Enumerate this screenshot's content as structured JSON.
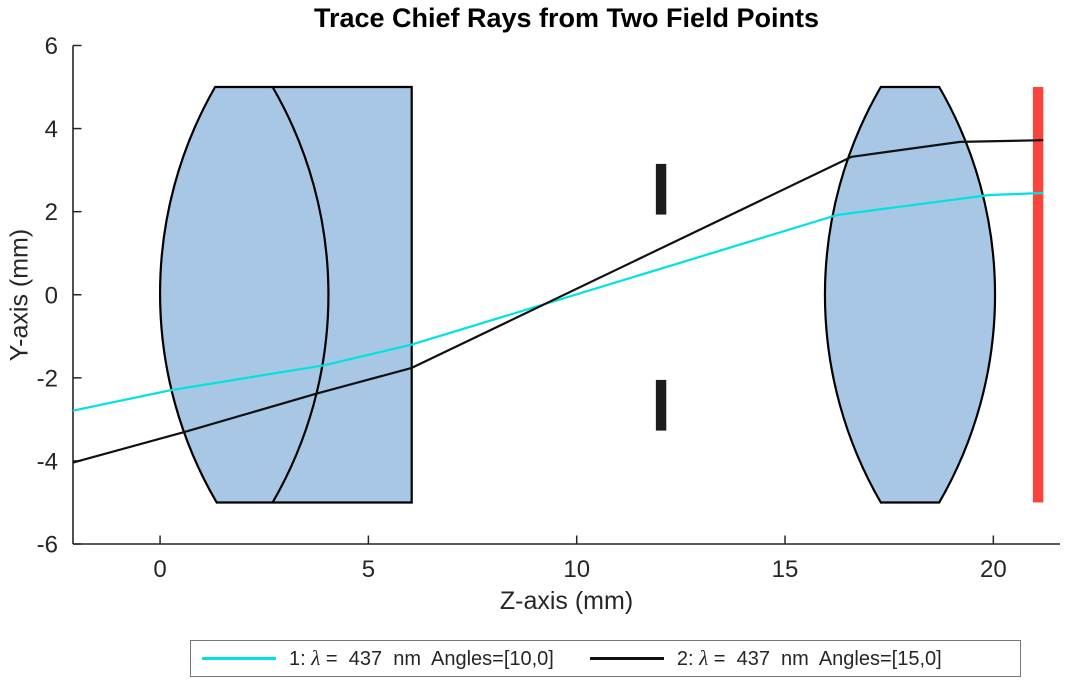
{
  "chart_data": {
    "type": "line",
    "title": "Trace Chief Rays from Two Field Points",
    "xlabel": "Z-axis (mm)",
    "ylabel": "Y-axis (mm)",
    "xlim": [
      -2.09,
      21.6
    ],
    "ylim": [
      -6,
      6
    ],
    "x_ticks": [
      0,
      5,
      10,
      15,
      20
    ],
    "y_ticks": [
      -6,
      -4,
      -2,
      0,
      2,
      4,
      6
    ],
    "grid": false,
    "legend_position": "south-outside",
    "axis_color": "#262626",
    "rays": [
      {
        "name": "1: λ = 437 nm Angles=[10,0]",
        "color": "#00e2e2",
        "points": [
          [
            -2.09,
            -2.79
          ],
          [
            0.24,
            -2.3
          ],
          [
            3.92,
            -1.7
          ],
          [
            6.04,
            -1.2
          ],
          [
            16.25,
            1.92
          ],
          [
            19.9,
            2.4
          ],
          [
            21.2,
            2.45
          ]
        ]
      },
      {
        "name": "2: λ = 437 nm Angles=[15,0]",
        "color": "#111111",
        "points": [
          [
            -2.09,
            -4.04
          ],
          [
            0.6,
            -3.3
          ],
          [
            3.76,
            -2.38
          ],
          [
            6.04,
            -1.76
          ],
          [
            16.6,
            3.32
          ],
          [
            19.2,
            3.68
          ],
          [
            21.2,
            3.72
          ]
        ]
      }
    ],
    "lenses": [
      {
        "name": "lens-group-1",
        "fill": "#a8c7e5",
        "stroke": "#000000",
        "outline": [
          [
            "M",
            1.32,
            5
          ],
          [
            "A",
            10,
            0,
            1.36,
            -5
          ],
          [
            "L",
            6.04,
            -5
          ],
          [
            "L",
            6.04,
            5
          ],
          [
            "Z"
          ]
        ],
        "inner_surfaces": [
          [
            [
              "M",
              2.7,
              5
            ],
            [
              "A",
              10,
              1,
              2.7,
              -5
            ]
          ]
        ]
      },
      {
        "name": "lens-2",
        "fill": "#a8c7e5",
        "stroke": "#000000",
        "outline": [
          [
            "M",
            17.3,
            5
          ],
          [
            "A",
            10,
            0,
            17.3,
            -5
          ],
          [
            "L",
            18.7,
            -5
          ],
          [
            "A",
            10,
            0,
            18.7,
            5
          ],
          [
            "Z"
          ]
        ],
        "inner_surfaces": []
      }
    ],
    "aperture_stop": {
      "color": "#1c1c1c",
      "bars": [
        {
          "z": [
            11.9,
            12.15
          ],
          "y": [
            1.93,
            3.15
          ]
        },
        {
          "z": [
            11.9,
            12.15
          ],
          "y": [
            -3.27,
            -2.05
          ]
        }
      ]
    },
    "image_plane": {
      "color": "#f8443a",
      "z": [
        20.95,
        21.2
      ],
      "y": [
        -5,
        5
      ]
    }
  },
  "legend": {
    "items": [
      {
        "id": "ray-1",
        "color": "#00e2e2",
        "prefix": "1: ",
        "lambda": "λ",
        "rest": " =  437  nm  Angles=[10,0]"
      },
      {
        "id": "ray-2",
        "color": "#111111",
        "prefix": "2: ",
        "lambda": "λ",
        "rest": " =  437  nm  Angles=[15,0]"
      }
    ]
  }
}
